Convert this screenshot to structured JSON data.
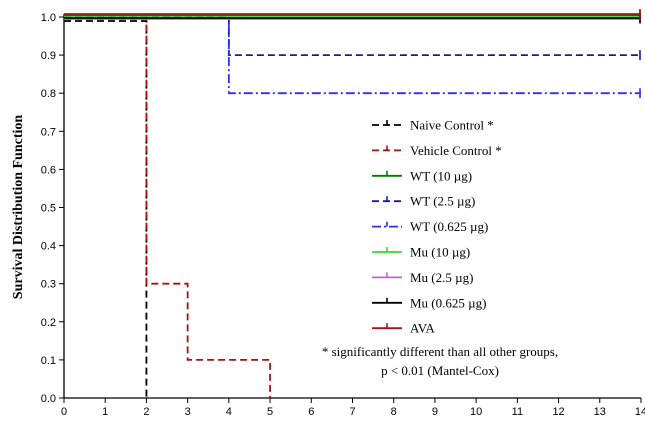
{
  "chart_data": {
    "type": "line",
    "title": "",
    "xlabel": "",
    "ylabel": "Survival Distribution Function",
    "xlim": [
      0,
      14
    ],
    "ylim": [
      0,
      1.0
    ],
    "x_ticks": [
      "0",
      "1",
      "2",
      "3",
      "4",
      "5",
      "6",
      "7",
      "8",
      "9",
      "10",
      "11",
      "12",
      "13",
      "14"
    ],
    "y_ticks": [
      "0.0",
      "0.1",
      "0.2",
      "0.3",
      "0.4",
      "0.5",
      "0.6",
      "0.7",
      "0.8",
      "0.9",
      "1.0"
    ],
    "step": true,
    "grid": false,
    "legend_position": "right",
    "series": [
      {
        "name": "Naive Control *",
        "color": "#000000",
        "dash": "dash",
        "x": [
          0,
          2,
          2
        ],
        "y": [
          1.0,
          1.0,
          0.0
        ]
      },
      {
        "name": "Vehicle Control *",
        "color": "#aa1111",
        "dash": "dash",
        "x": [
          0,
          2,
          2,
          3,
          3,
          5,
          5
        ],
        "y": [
          1.0,
          1.0,
          0.3,
          0.3,
          0.1,
          0.1,
          0.0
        ]
      },
      {
        "name": "WT (10 µg)",
        "color": "#007a00",
        "dash": "solid",
        "x": [
          0,
          14
        ],
        "y": [
          1.0,
          1.0
        ]
      },
      {
        "name": "WT (2.5 µg)",
        "color": "#1a1a99",
        "dash": "dash",
        "x": [
          0,
          4,
          4,
          14
        ],
        "y": [
          1.0,
          1.0,
          0.9,
          0.9
        ]
      },
      {
        "name": "WT (0.625 µg)",
        "color": "#2d2dff",
        "dash": "dashdot",
        "x": [
          0,
          4,
          4,
          14
        ],
        "y": [
          1.0,
          1.0,
          0.8,
          0.8
        ]
      },
      {
        "name": "Mu (10 µg)",
        "color": "#33dd33",
        "dash": "solid",
        "x": [
          0,
          14
        ],
        "y": [
          1.0,
          1.0
        ]
      },
      {
        "name": "Mu (2.5 µg)",
        "color": "#bb66cc",
        "dash": "solid",
        "x": [
          0,
          14
        ],
        "y": [
          1.0,
          1.0
        ]
      },
      {
        "name": "Mu (0.625 µg)",
        "color": "#000000",
        "dash": "solid",
        "x": [
          0,
          14
        ],
        "y": [
          1.0,
          1.0
        ]
      },
      {
        "name": "AVA",
        "color": "#aa1111",
        "dash": "solid",
        "x": [
          0,
          14
        ],
        "y": [
          1.0,
          1.0
        ]
      }
    ],
    "annotations": [
      "* significantly different than all other groups,",
      "p < 0.01 (Mantel-Cox)"
    ]
  }
}
